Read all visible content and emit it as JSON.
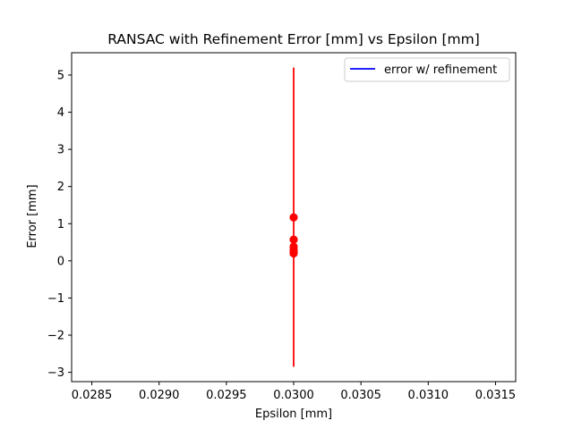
{
  "chart_data": {
    "type": "scatter",
    "title": "RANSAC with Refinement Error [mm] vs Epsilon [mm]",
    "xlabel": "Epsilon [mm]",
    "ylabel": "Error [mm]",
    "xlim": [
      0.02835,
      0.03165
    ],
    "ylim": [
      -3.25,
      5.6
    ],
    "xticks": [
      0.0285,
      0.029,
      0.0295,
      0.03,
      0.0305,
      0.031,
      0.0315
    ],
    "xtick_labels": [
      "0.0285",
      "0.0290",
      "0.0295",
      "0.0300",
      "0.0305",
      "0.0310",
      "0.0315"
    ],
    "yticks": [
      -3,
      -2,
      -1,
      0,
      1,
      2,
      3,
      4,
      5
    ],
    "ytick_labels": [
      "−3",
      "−2",
      "−1",
      "0",
      "1",
      "2",
      "3",
      "4",
      "5"
    ],
    "grid": false,
    "legend": {
      "placement": "top-right",
      "entries": [
        {
          "label": "error w/ refinement",
          "color": "#0000ff",
          "marker": "line"
        }
      ]
    },
    "series": [
      {
        "name": "error w/ refinement",
        "color": "#0000ff",
        "x": [
          0.03
        ],
        "y": [
          0.4
        ]
      }
    ],
    "points": {
      "color": "#ff0000",
      "x": [
        0.03,
        0.03,
        0.03,
        0.03,
        0.03,
        0.03
      ],
      "y": [
        1.17,
        0.57,
        0.38,
        0.3,
        0.25,
        0.2
      ]
    },
    "errorbar": {
      "color": "#ff0000",
      "x": 0.03,
      "ymin": -2.85,
      "ymax": 5.2
    }
  }
}
